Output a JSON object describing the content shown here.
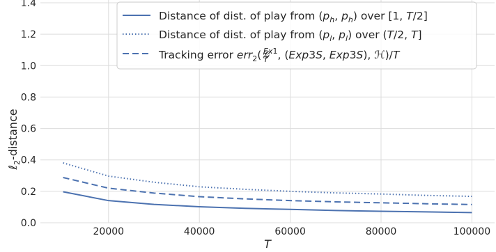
{
  "chart_data": {
    "type": "line",
    "title": "",
    "xlabel": "T",
    "ylabel": "ℓ2-distance",
    "xlim": [
      5000,
      105000
    ],
    "ylim": [
      0.0,
      1.4
    ],
    "xticks": [
      20000,
      40000,
      60000,
      80000,
      100000
    ],
    "xtick_labels": [
      "20000",
      "40000",
      "60000",
      "80000",
      "100000"
    ],
    "yticks": [
      0.0,
      0.2,
      0.4,
      0.6,
      0.8,
      1.0,
      1.2,
      1.4
    ],
    "ytick_labels": [
      "0.0",
      "0.2",
      "0.4",
      "0.6",
      "0.8",
      "1.0",
      "1.2",
      "1.4"
    ],
    "grid": true,
    "legend_position": "top-right",
    "x": [
      10000,
      20000,
      30000,
      40000,
      50000,
      60000,
      70000,
      80000,
      90000,
      100000
    ],
    "series": [
      {
        "name": "Distance of dist. of play from (p_h, p_h) over [1, T/2]",
        "style": "solid",
        "color": "#4c72b0",
        "values": [
          0.197,
          0.141,
          0.117,
          0.102,
          0.092,
          0.085,
          0.078,
          0.073,
          0.069,
          0.065
        ]
      },
      {
        "name": "Distance of dist. of play from (p_l, p_l) over (T/2, T]",
        "style": "dotted",
        "color": "#4c72b0",
        "values": [
          0.381,
          0.297,
          0.258,
          0.229,
          0.213,
          0.2,
          0.19,
          0.183,
          0.174,
          0.168
        ]
      },
      {
        "name": "Tracking error err_2(G_T^{Ex1}, (Exp3S, Exp3S), H)/T",
        "style": "dashed",
        "color": "#4c72b0",
        "values": [
          0.288,
          0.22,
          0.189,
          0.166,
          0.152,
          0.141,
          0.133,
          0.127,
          0.121,
          0.116
        ]
      }
    ]
  }
}
